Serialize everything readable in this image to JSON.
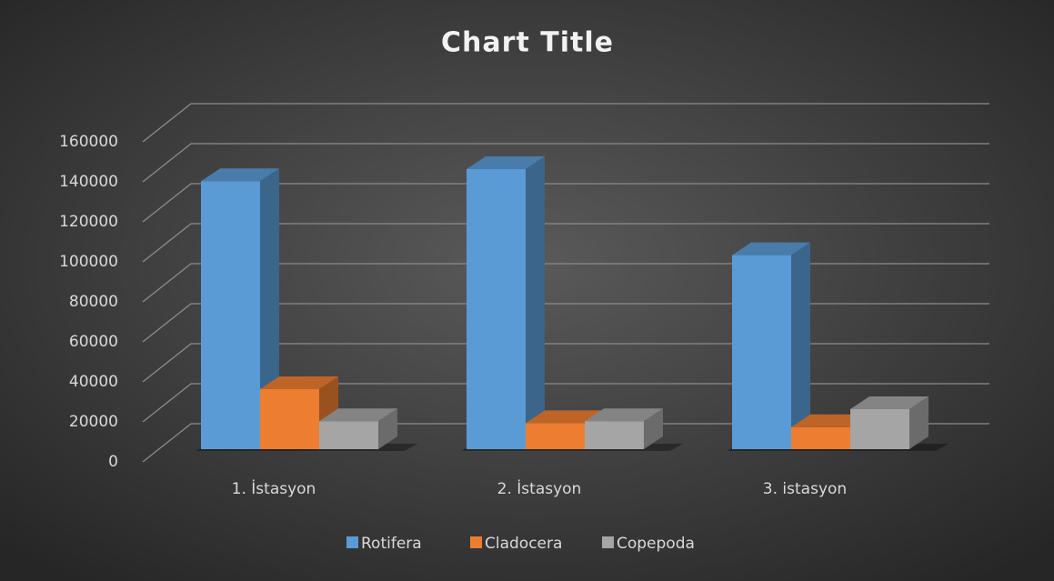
{
  "chart_data": {
    "type": "bar3d",
    "title": "Chart Title",
    "categories": [
      "1. İstasyon",
      "2. İstasyon",
      "3. istasyon"
    ],
    "series": [
      {
        "name": "Rotifera",
        "color": "#5b9bd5",
        "values": [
          134000,
          140000,
          97000
        ]
      },
      {
        "name": "Cladocera",
        "color": "#ed7d31",
        "values": [
          30000,
          13000,
          11000
        ]
      },
      {
        "name": "Copepoda",
        "color": "#a5a5a5",
        "values": [
          14000,
          14000,
          20000
        ]
      }
    ],
    "ylim": [
      0,
      160000
    ],
    "yticks": [
      0,
      20000,
      40000,
      60000,
      80000,
      100000,
      120000,
      140000,
      160000
    ],
    "grid": true,
    "legend": "bottom"
  }
}
